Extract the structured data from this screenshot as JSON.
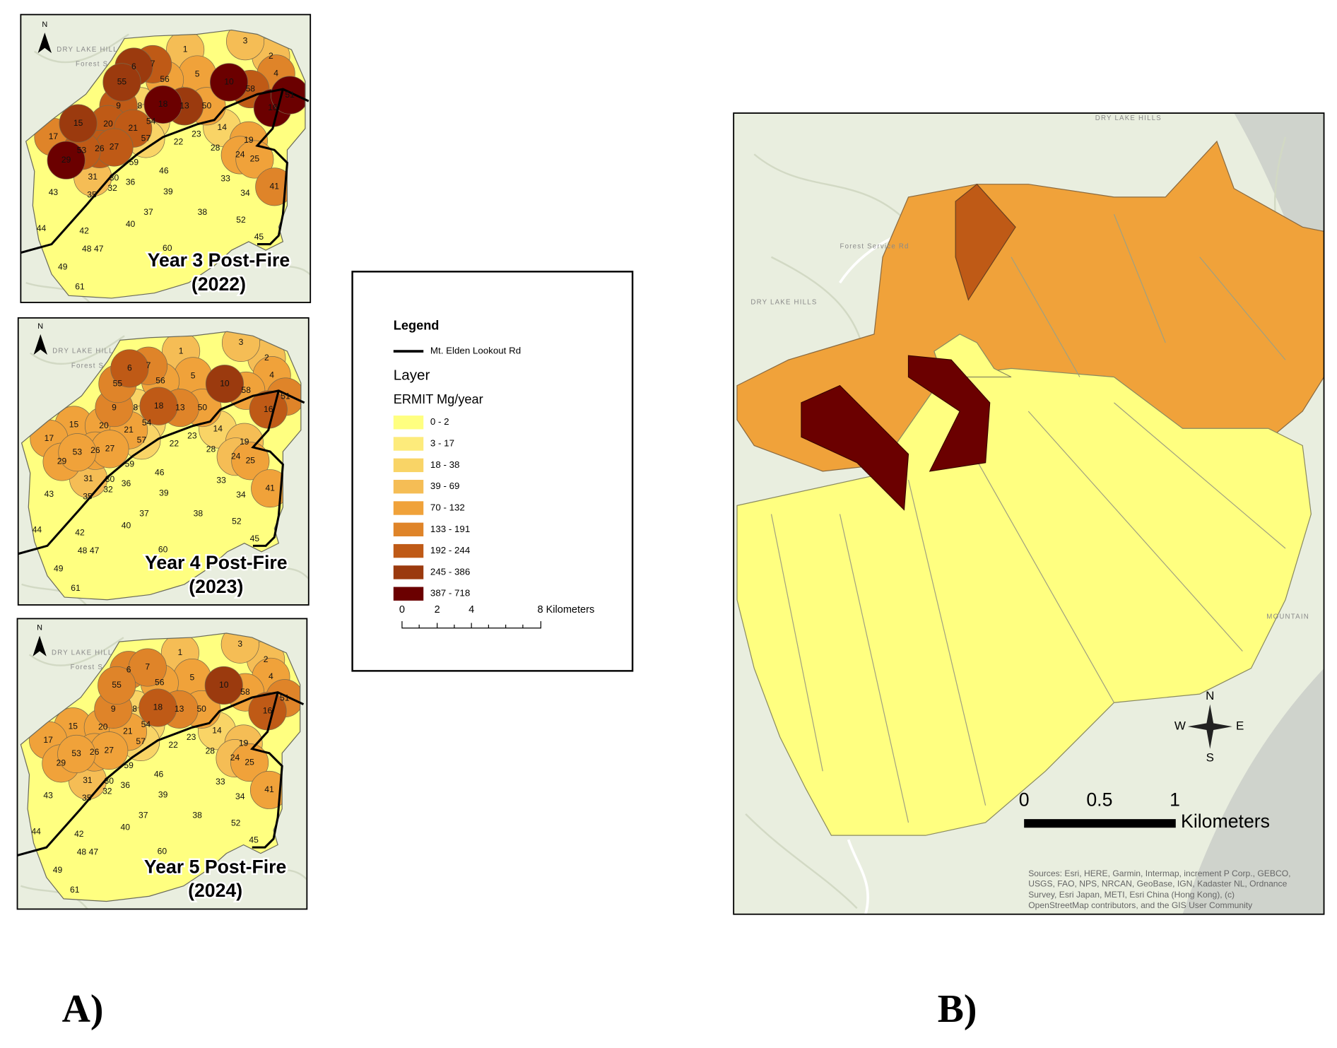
{
  "panel_a": {
    "label": "A)",
    "north": "N",
    "maps": [
      {
        "title": "Year 3 Post-Fire",
        "year": "(2022)"
      },
      {
        "title": "Year 4 Post-Fire",
        "year": "(2023)"
      },
      {
        "title": "Year 5 Post-Fire",
        "year": "(2024)"
      }
    ],
    "subwatersheds": [
      "1",
      "2",
      "3",
      "4",
      "5",
      "6",
      "7",
      "8",
      "9",
      "10",
      "13",
      "14",
      "15",
      "16",
      "17",
      "18",
      "19",
      "20",
      "21",
      "22",
      "23",
      "24",
      "25",
      "26",
      "27",
      "28",
      "29",
      "30",
      "31",
      "32",
      "33",
      "34",
      "35",
      "36",
      "37",
      "38",
      "39",
      "40",
      "41",
      "42",
      "43",
      "44",
      "45",
      "46",
      "47",
      "48",
      "49",
      "50",
      "51",
      "52",
      "53",
      "54",
      "55",
      "56",
      "57",
      "58",
      "59",
      "60",
      "61"
    ]
  },
  "legend": {
    "title": "Legend",
    "road": "Mt. Elden Lookout Rd",
    "layer": "Layer",
    "field": "ERMIT Mg/year",
    "classes": [
      {
        "label": "0 - 2",
        "color": "#ffff80"
      },
      {
        "label": "3 - 17",
        "color": "#fdeb7b"
      },
      {
        "label": "18 - 38",
        "color": "#f9d466"
      },
      {
        "label": "39 - 69",
        "color": "#f5bd55"
      },
      {
        "label": "70 - 132",
        "color": "#f0a23a"
      },
      {
        "label": "133 - 191",
        "color": "#df8429"
      },
      {
        "label": "192 - 244",
        "color": "#bf5a16"
      },
      {
        "label": "245 - 386",
        "color": "#9b3a0e"
      },
      {
        "label": "387 - 718",
        "color": "#6b0000"
      }
    ],
    "scale": [
      "0",
      "2",
      "4",
      "8 Kilometers"
    ]
  },
  "panel_b": {
    "label": "B)",
    "compass": {
      "n": "N",
      "e": "E",
      "s": "S",
      "w": "W"
    },
    "scale": [
      "0",
      "0.5",
      "1"
    ],
    "scale_unit": "Kilometers",
    "attribution": [
      "Sources: Esri, HERE, Garmin, Intermap, increment P Corp., GEBCO,",
      "USGS, FAO, NPS, NRCAN, GeoBase, IGN, Kadaster NL, Ordnance",
      "Survey, Esri Japan, METI, Esri China (Hong Kong), (c)",
      "OpenStreetMap contributors, and the GIS User Community"
    ]
  },
  "basemap": {
    "area": "DRY LAKE HILLS",
    "road": "Forest Service Rd",
    "mountain": "MOUNTAIN"
  }
}
